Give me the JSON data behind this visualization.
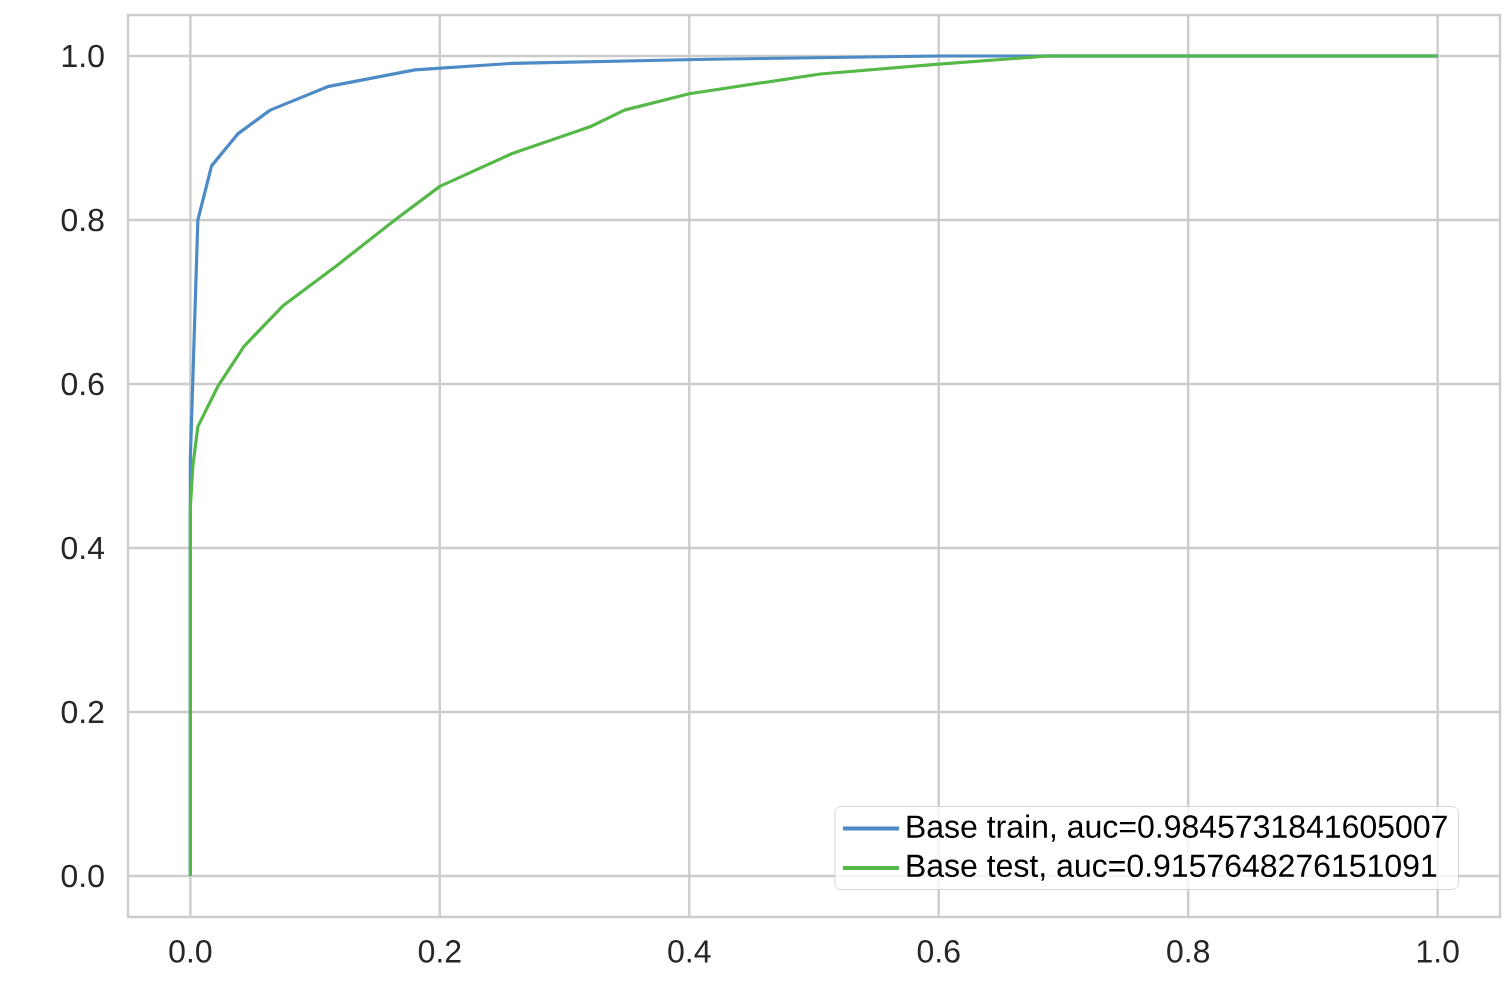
{
  "chart_data": {
    "type": "line",
    "xlim": [
      -0.05,
      1.05
    ],
    "ylim": [
      -0.05,
      1.05
    ],
    "xticks": [
      {
        "value": 0,
        "label": "0.0"
      },
      {
        "value": 0.2,
        "label": "0.2"
      },
      {
        "value": 0.4,
        "label": "0.4"
      },
      {
        "value": 0.6,
        "label": "0.6"
      },
      {
        "value": 0.8,
        "label": "0.8"
      },
      {
        "value": 1,
        "label": "1.0"
      }
    ],
    "yticks": [
      {
        "value": 0,
        "label": "0.0"
      },
      {
        "value": 0.2,
        "label": "0.2"
      },
      {
        "value": 0.4,
        "label": "0.4"
      },
      {
        "value": 0.6,
        "label": "0.6"
      },
      {
        "value": 0.8,
        "label": "0.8"
      },
      {
        "value": 1,
        "label": "1.0"
      }
    ],
    "grid": true,
    "legend": "bottom right",
    "line_style": "solid",
    "marker": "none",
    "series": [
      {
        "name": "Base train, auc=0.9845731841605007",
        "color": "#4c8bc6",
        "x": [
          0,
          0,
          0.006,
          0.017,
          0.038,
          0.064,
          0.111,
          0.18,
          0.258,
          0.416,
          0.6,
          1.0
        ],
        "values": [
          0,
          0.51,
          0.8,
          0.866,
          0.905,
          0.934,
          0.963,
          0.983,
          0.991,
          0.996,
          1.0,
          1.0
        ]
      },
      {
        "name": "Base test, auc=0.9157648276151091",
        "color": "#55b848",
        "x": [
          0,
          0,
          0.002,
          0.006,
          0.022,
          0.043,
          0.074,
          0.117,
          0.164,
          0.2,
          0.258,
          0.321,
          0.348,
          0.4,
          0.505,
          0.6,
          0.688,
          1.0
        ],
        "values": [
          0,
          0.45,
          0.5,
          0.548,
          0.597,
          0.646,
          0.695,
          0.744,
          0.8,
          0.841,
          0.881,
          0.914,
          0.934,
          0.954,
          0.978,
          0.99,
          1.0,
          1.0
        ]
      }
    ]
  }
}
